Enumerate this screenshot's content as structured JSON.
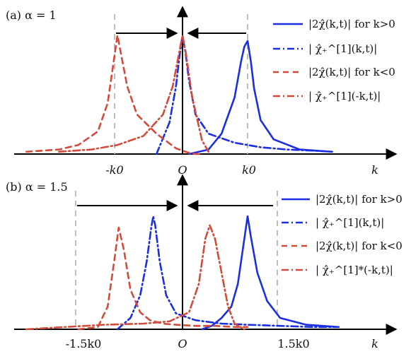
{
  "colors": {
    "blue": "#1b2fe0",
    "red": "#d24a3a",
    "gray": "#bdbdbd",
    "axis": "#000000"
  },
  "legend": [
    {
      "style": "solid-blue",
      "text": "|2χ̂(k,t)| for k>0"
    },
    {
      "style": "dashdot-blue",
      "text": "| χ̂₊^[1](k,t)|"
    },
    {
      "style": "dashed-red",
      "text": "|2χ̂(k,t)| for k<0"
    },
    {
      "style": "dashdot-red",
      "text": "| χ̂₊^[1](-k,t)|",
      "text_b": "| χ̂₊^[1]*(-k,t)|"
    }
  ],
  "chart_data": [
    {
      "type": "line",
      "panel_label": "(a) α = 1",
      "xlabel": "k",
      "tick_labels": [
        "-k0",
        "O",
        "k0"
      ],
      "annotations": [
        "arrow → toward O",
        "arrow ← toward O"
      ],
      "series": [
        {
          "style": "solid-blue",
          "x": [
            0.1,
            0.4,
            0.6,
            0.8,
            0.9,
            0.95,
            1.0,
            1.05,
            1.1,
            1.2,
            1.4,
            1.8,
            2.3
          ],
          "y": [
            0.0,
            0.04,
            0.18,
            0.5,
            0.82,
            0.95,
            1.0,
            0.82,
            0.58,
            0.3,
            0.13,
            0.04,
            0.02
          ]
        },
        {
          "style": "dashdot-blue",
          "x": [
            -0.4,
            -0.2,
            -0.1,
            -0.05,
            0.0,
            0.05,
            0.1,
            0.2,
            0.4,
            0.8,
            1.2,
            1.6,
            2.0,
            2.3
          ],
          "y": [
            0.0,
            0.28,
            0.6,
            0.85,
            1.05,
            0.88,
            0.65,
            0.35,
            0.18,
            0.1,
            0.06,
            0.04,
            0.03,
            0.02
          ]
        },
        {
          "style": "dashed-red",
          "x": [
            -2.4,
            -1.9,
            -1.6,
            -1.3,
            -1.15,
            -1.05,
            -1.0,
            -0.95,
            -0.85,
            -0.7,
            -0.4,
            -0.1,
            0.1,
            0.2,
            0.3
          ],
          "y": [
            0.02,
            0.04,
            0.08,
            0.2,
            0.45,
            0.85,
            1.05,
            0.9,
            0.6,
            0.35,
            0.18,
            0.05,
            0.01,
            0.0,
            0.0
          ]
        },
        {
          "style": "dashdot-red",
          "x": [
            -1.9,
            -1.4,
            -1.0,
            -0.6,
            -0.3,
            -0.15,
            -0.05,
            0.0,
            0.05,
            0.15,
            0.3,
            0.4
          ],
          "y": [
            0.02,
            0.04,
            0.08,
            0.16,
            0.35,
            0.6,
            0.9,
            1.05,
            0.9,
            0.5,
            0.12,
            0.02
          ]
        }
      ]
    },
    {
      "type": "line",
      "panel_label": "(b) α = 1.5",
      "xlabel": "k",
      "tick_labels": [
        "-1.5k0",
        "O",
        "1.5k0"
      ],
      "annotations": [
        "arrow → toward O",
        "arrow ← toward O"
      ],
      "series": [
        {
          "style": "solid-blue",
          "x": [
            0.3,
            0.45,
            0.6,
            0.75,
            0.85,
            0.95,
            1.0,
            1.05,
            1.15,
            1.3,
            1.5,
            1.9,
            2.4
          ],
          "y": [
            0.0,
            0.03,
            0.1,
            0.2,
            0.4,
            0.8,
            1.0,
            0.82,
            0.5,
            0.25,
            0.1,
            0.04,
            0.02
          ]
        },
        {
          "style": "dashdot-blue",
          "x": [
            -1.0,
            -0.8,
            -0.65,
            -0.55,
            -0.48,
            -0.45,
            -0.42,
            -0.35,
            -0.25,
            -0.1,
            0.2,
            0.6,
            1.0,
            1.5,
            2.0,
            2.4
          ],
          "y": [
            0.0,
            0.1,
            0.3,
            0.6,
            0.9,
            1.0,
            0.92,
            0.6,
            0.3,
            0.14,
            0.08,
            0.05,
            0.04,
            0.03,
            0.02,
            0.02
          ]
        },
        {
          "style": "dashed-red",
          "x": [
            -1.6,
            -1.3,
            -1.15,
            -1.05,
            -0.98,
            -0.9,
            -0.8,
            -0.65,
            -0.5,
            -0.3,
            -0.1,
            0.2,
            0.5,
            0.8,
            1.0
          ],
          "y": [
            0.0,
            0.02,
            0.2,
            0.6,
            0.9,
            0.7,
            0.35,
            0.15,
            0.08,
            0.05,
            0.04,
            0.03,
            0.03,
            0.02,
            0.02
          ]
        },
        {
          "style": "dashdot-red",
          "x": [
            -2.4,
            -1.8,
            -1.2,
            -0.6,
            -0.2,
            0.1,
            0.25,
            0.35,
            0.42,
            0.5,
            0.6,
            0.7,
            0.8,
            0.95
          ],
          "y": [
            0.0,
            0.02,
            0.04,
            0.05,
            0.07,
            0.15,
            0.4,
            0.8,
            0.92,
            0.8,
            0.5,
            0.2,
            0.05,
            0.0
          ]
        }
      ]
    }
  ]
}
